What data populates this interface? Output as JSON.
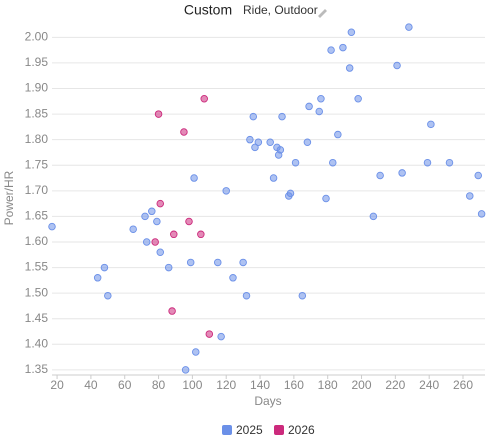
{
  "chart_data": {
    "type": "scatter",
    "title": "Custom",
    "subtitle": "Ride, Outdoor",
    "x_label": "Days",
    "y_label": "Power/HR",
    "xlim": [
      17,
      273
    ],
    "ylim": [
      1.34,
      2.03
    ],
    "xticks": [
      20,
      40,
      60,
      80,
      100,
      120,
      140,
      160,
      180,
      200,
      220,
      240,
      260
    ],
    "yticks": [
      1.35,
      {
        "value": 1.4,
        "label": "1.40"
      },
      1.45,
      {
        "value": 1.5,
        "label": "1.50"
      },
      1.55,
      {
        "value": 1.6,
        "label": "1.60"
      },
      1.65,
      {
        "value": 1.7,
        "label": "1.70"
      },
      1.75,
      {
        "value": 1.8,
        "label": "1.80"
      },
      1.85,
      {
        "value": 1.9,
        "label": "1.90"
      },
      1.95,
      {
        "value": 2,
        "label": "2.00"
      }
    ],
    "grid": true,
    "legend": "bottom",
    "series": [
      {
        "name": "2025",
        "color": "#6b90e8",
        "x": [
          17,
          44,
          48,
          50,
          65,
          72,
          73,
          76,
          79,
          81,
          86,
          99,
          101,
          96,
          102,
          117,
          115,
          120,
          124,
          130,
          132,
          134,
          137,
          139,
          136,
          146,
          148,
          150,
          151,
          152,
          153,
          157,
          158,
          161,
          165,
          168,
          169,
          175,
          176,
          179,
          182,
          183,
          186,
          189,
          193,
          194,
          198,
          207,
          211,
          221,
          224,
          228,
          239,
          241,
          252,
          264,
          269,
          271
        ],
        "values": [
          1.63,
          1.53,
          1.55,
          1.495,
          1.625,
          1.65,
          1.6,
          1.66,
          1.64,
          1.58,
          1.55,
          1.56,
          1.725,
          1.35,
          1.385,
          1.415,
          1.56,
          1.7,
          1.53,
          1.56,
          1.495,
          1.8,
          1.785,
          1.795,
          1.845,
          1.795,
          1.725,
          1.785,
          1.77,
          1.78,
          1.845,
          1.69,
          1.695,
          1.755,
          1.495,
          1.795,
          1.865,
          1.855,
          1.88,
          1.685,
          1.975,
          1.755,
          1.81,
          1.98,
          1.94,
          2.01,
          1.88,
          1.65,
          1.73,
          1.945,
          1.735,
          2.02,
          1.755,
          1.83,
          1.755,
          1.69,
          1.73,
          1.655
        ]
      },
      {
        "name": "2026",
        "color": "#cc2a7c",
        "x": [
          80,
          78,
          81,
          89,
          88,
          95,
          98,
          105,
          107,
          110
        ],
        "values": [
          1.85,
          1.6,
          1.675,
          1.615,
          1.465,
          1.815,
          1.64,
          1.615,
          1.88,
          1.42
        ]
      }
    ]
  }
}
